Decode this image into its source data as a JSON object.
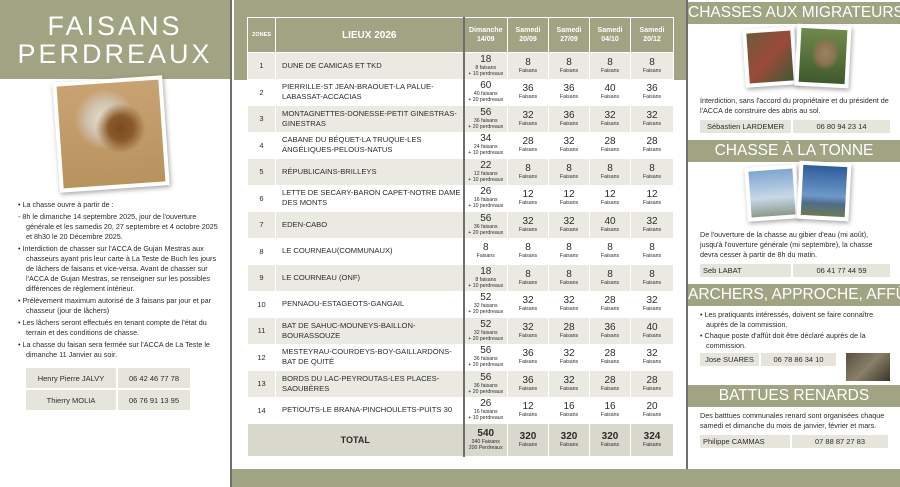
{
  "left": {
    "title_line1": "FAISANS",
    "title_line2": "PERDREAUX",
    "rules": [
      "• La chasse ouvre à partir de :",
      "- 8h le dimanche 14 septembre 2025, jour de l'ouverture générale et les samedis 20, 27 septembre et 4 octobre 2025 et 8h30 le 20 Décembre 2025.",
      "• Interdiction de chasser sur l'ACCA de Gujan Mestras aux chasseurs ayant pris leur carte à La Teste de Buch les jours de lâchers de faisans et vice-versa. Avant de chasser sur l'ACCA de Gujan Mestras, se renseigner sur les possibles différences de règlement intérieur.",
      "• Prélèvement maximum autorisé de 3 faisans par jour et par chasseur (jour de lâchers)",
      "• Les lâchers seront effectués en tenant compte de l'état du terrain et des conditions de chasse.",
      "• La chasse du faisan sera fermée sur l'ACCA de La Teste le dimanche 11 Janvier au soir."
    ],
    "contacts": [
      {
        "name": "Henry Pierre JALVY",
        "phone": "06 42 46 77 78"
      },
      {
        "name": "Thierry MOLIA",
        "phone": "06 76 91 13 95"
      }
    ]
  },
  "table": {
    "headers": [
      "ZONES",
      "LIEUX 2026",
      "Dimanche 14/09",
      "Samedi 20/09",
      "Samedi 27/09",
      "Samedi 04/10",
      "Samedi 20/12"
    ],
    "rows": [
      [
        "1",
        "DUNE DE CAMICAS ET TKD",
        "18",
        "8 faisans",
        "+ 10 perdreaux",
        "8",
        "8",
        "8",
        "8"
      ],
      [
        "2",
        "PIERRILLE-ST JEAN-BRAOUET-LA PALUE-LABASSAT-ACCACIAS",
        "60",
        "40 faisans",
        "+ 20 perdreaux",
        "36",
        "36",
        "40",
        "36"
      ],
      [
        "3",
        "MONTAGNETTES-DONESSE-PETIT GINESTRAS-GINESTRAS",
        "56",
        "36 faisans",
        "+ 20 perdreaux",
        "32",
        "36",
        "32",
        "32"
      ],
      [
        "4",
        "CABANE DU BÉQUET-LA TRUQUE-LES ANGÉLIQUES-PELOUS-NATUS",
        "34",
        "24 faisans",
        "+ 10 perdreaux",
        "28",
        "32",
        "28",
        "28"
      ],
      [
        "5",
        "RÉPUBLICAINS-BRILLEYS",
        "22",
        "12 faisans",
        "+ 10 perdreaux",
        "8",
        "8",
        "8",
        "8"
      ],
      [
        "6",
        "LETTE DE SECARY-BARON CAPET-NOTRE DAME DES MONTS",
        "26",
        "16 faisans",
        "+ 10 perdreaux",
        "12",
        "12",
        "12",
        "12"
      ],
      [
        "7",
        "EDEN-CABO",
        "56",
        "36 faisans",
        "+ 20 perdreaux",
        "32",
        "32",
        "40",
        "32"
      ],
      [
        "8",
        "LE COURNEAU(COMMUNAUX)",
        "8",
        "Faisans",
        "",
        "8",
        "8",
        "8",
        "8"
      ],
      [
        "9",
        "LE COURNEAU (ONF)",
        "18",
        "8 faisans",
        "+ 10 perdreaux",
        "8",
        "8",
        "8",
        "8"
      ],
      [
        "10",
        "PENNAOU-ESTAGEOTS-GANGAIL",
        "52",
        "32 faisans",
        "+ 20 perdreaux",
        "32",
        "32",
        "28",
        "32"
      ],
      [
        "11",
        "BAT DE SAHUC-MOUNEYS-BAILLON-BOURASSOUZE",
        "52",
        "32 faisans",
        "+ 20 perdreaux",
        "32",
        "28",
        "36",
        "40"
      ],
      [
        "12",
        "MESTEYRAU-COURDEYS-BOY-GAILLARDONS-BAT DE QUITÉ",
        "56",
        "36 faisans",
        "+ 20 perdreaux",
        "36",
        "32",
        "28",
        "32"
      ],
      [
        "13",
        "BORDS DU LAC-PEYROUTAS-LES PLACES-SAOUBÈRES",
        "56",
        "36 faisans",
        "+ 20 perdreaux",
        "36",
        "32",
        "28",
        "28"
      ],
      [
        "14",
        "PETIOUTS-LE BRANA-PINCHOULETS-PUITS 30",
        "26",
        "16 faisans",
        "+ 10 perdreaux",
        "12",
        "16",
        "16",
        "20"
      ]
    ],
    "unit": "Faisans",
    "total": {
      "label": "TOTAL",
      "dim": "540",
      "dim_sub1": "340 Faisans",
      "dim_sub2": "200 Perdreaux",
      "values": [
        "320",
        "320",
        "320",
        "324"
      ]
    }
  },
  "right": {
    "migr": {
      "title": "CHASSES AUX MIGRATEURS",
      "text": "Interdiction, sans l'accord du propriétaire et du président de l'ACCA de construire des abris au sol.",
      "name": "Sébastien LARDEMER",
      "phone": "06 80 94 23 14"
    },
    "tonne": {
      "title": "CHASSE À LA TONNE",
      "text": "De l'ouverture de la chasse au gibier d'eau (mi août), jusqu'à l'ouverture générale (mi septembre), la chasse devra cesser à partir de 8h du matin.",
      "name": "Seb LABAT",
      "phone": "06 41 77 44 59"
    },
    "archers": {
      "title": "ARCHERS, APPROCHE, AFFÛT",
      "items": [
        "• Les pratiquants intéressés, doivent se faire connaître auprès de la commission.",
        "• Chaque poste d'affût doit être déclaré auprès de la commission."
      ],
      "name": "Jose SUARES",
      "phone": "06 78 86 34 10"
    },
    "renards": {
      "title": "BATTUES RENARDS",
      "text": "Des batttues communales renard sont organisées chaque samedi et dimanche du mois de janvier, février et mars.",
      "name": "Philippe CAMMAS",
      "phone": "07 88 87 27 83"
    }
  },
  "colors": {
    "olive": "#a0a482",
    "light_row": "#ebeae2",
    "contact_bg": "#e6e5dc"
  }
}
